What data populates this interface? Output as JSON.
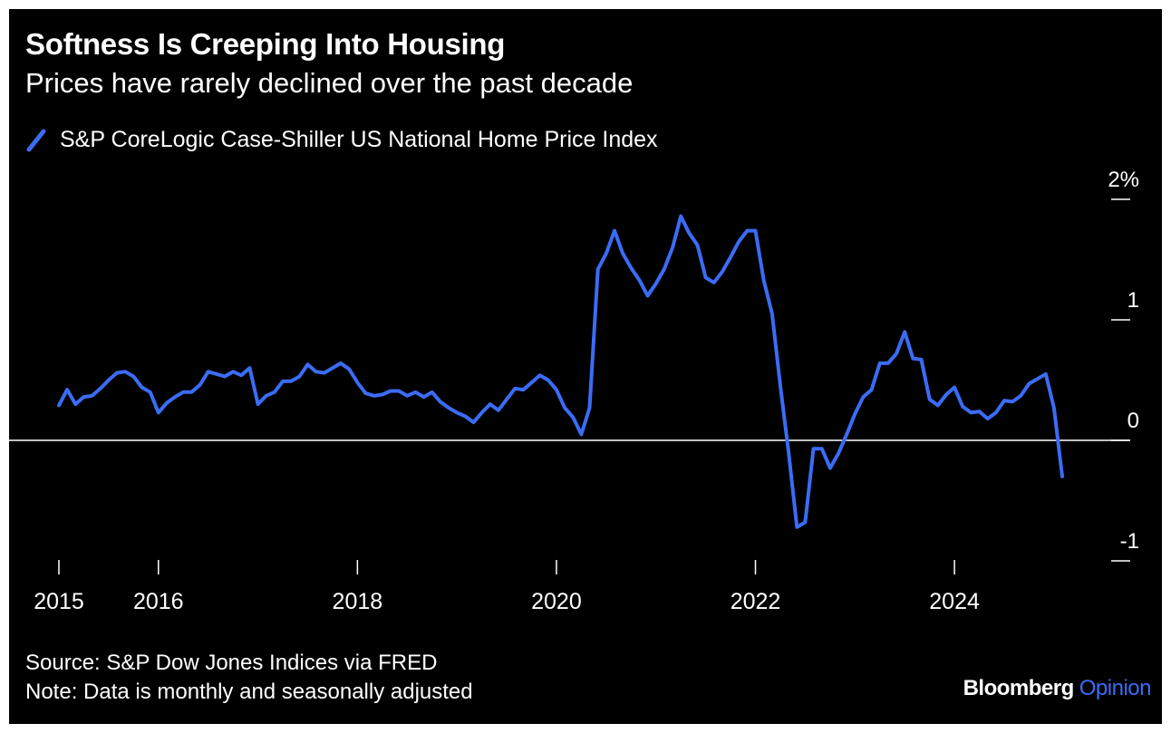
{
  "title": "Softness Is Creeping Into Housing",
  "subtitle": "Prices have rarely declined over the past decade",
  "legend_label": "S&P CoreLogic Case-Shiller US National Home Price Index",
  "source": "Source: S&P Dow Jones Indices via FRED",
  "note": "Note: Data is monthly and seasonally adjusted",
  "brand": {
    "name": "Bloomberg",
    "suffix": "Opinion"
  },
  "colors": {
    "background": "#000000",
    "line": "#3b6cf6",
    "text": "#ffffff",
    "zero_line": "#ffffff",
    "brand_accent": "#3b6cf6"
  },
  "chart_data": {
    "type": "line",
    "x_axis": {
      "ticks": [
        2015,
        2016,
        2018,
        2020,
        2022,
        2024
      ],
      "labels": [
        "2015",
        "2016",
        "2018",
        "2020",
        "2022",
        "2024"
      ]
    },
    "y_axis": {
      "ticks": [
        2,
        1,
        0,
        -1
      ],
      "labels": [
        "2%",
        "1",
        "0",
        "-1"
      ],
      "position": "right"
    },
    "ylim": [
      -1,
      2
    ],
    "grid": false,
    "zero_line": true,
    "legend": "top-left",
    "series": [
      {
        "name": "S&P CoreLogic Case-Shiller US National Home Price Index",
        "x": [
          2015.0,
          2015.083,
          2015.167,
          2015.25,
          2015.333,
          2015.417,
          2015.5,
          2015.583,
          2015.667,
          2015.75,
          2015.833,
          2015.917,
          2016.0,
          2016.083,
          2016.167,
          2016.25,
          2016.333,
          2016.417,
          2016.5,
          2016.583,
          2016.667,
          2016.75,
          2016.833,
          2016.917,
          2017.0,
          2017.083,
          2017.167,
          2017.25,
          2017.333,
          2017.417,
          2017.5,
          2017.583,
          2017.667,
          2017.75,
          2017.833,
          2017.917,
          2018.0,
          2018.083,
          2018.167,
          2018.25,
          2018.333,
          2018.417,
          2018.5,
          2018.583,
          2018.667,
          2018.75,
          2018.833,
          2018.917,
          2019.0,
          2019.083,
          2019.167,
          2019.25,
          2019.333,
          2019.417,
          2019.5,
          2019.583,
          2019.667,
          2019.75,
          2019.833,
          2019.917,
          2020.0,
          2020.083,
          2020.167,
          2020.25,
          2020.333,
          2020.417,
          2020.5,
          2020.583,
          2020.667,
          2020.75,
          2020.833,
          2020.917,
          2021.0,
          2021.083,
          2021.167,
          2021.25,
          2021.333,
          2021.417,
          2021.5,
          2021.583,
          2021.667,
          2021.75,
          2021.833,
          2021.917,
          2022.0,
          2022.083,
          2022.167,
          2022.25,
          2022.333,
          2022.417,
          2022.5,
          2022.583,
          2022.667,
          2022.75,
          2022.833,
          2022.917,
          2023.0,
          2023.083,
          2023.167,
          2023.25,
          2023.333,
          2023.417,
          2023.5,
          2023.583,
          2023.667,
          2023.75,
          2023.833,
          2023.917,
          2024.0,
          2024.083,
          2024.167,
          2024.25,
          2024.333,
          2024.417,
          2024.5,
          2024.583,
          2024.667,
          2024.75,
          2024.833,
          2024.917,
          2025.0,
          2025.083
        ],
        "values": [
          0.29,
          0.42,
          0.3,
          0.36,
          0.37,
          0.43,
          0.5,
          0.56,
          0.57,
          0.53,
          0.44,
          0.4,
          0.23,
          0.31,
          0.36,
          0.4,
          0.4,
          0.46,
          0.57,
          0.55,
          0.53,
          0.57,
          0.54,
          0.6,
          0.3,
          0.37,
          0.4,
          0.49,
          0.49,
          0.53,
          0.63,
          0.57,
          0.56,
          0.6,
          0.64,
          0.59,
          0.48,
          0.39,
          0.37,
          0.38,
          0.41,
          0.41,
          0.37,
          0.4,
          0.36,
          0.4,
          0.32,
          0.27,
          0.23,
          0.2,
          0.15,
          0.23,
          0.3,
          0.25,
          0.34,
          0.43,
          0.42,
          0.48,
          0.54,
          0.5,
          0.42,
          0.27,
          0.19,
          0.05,
          0.27,
          1.42,
          1.55,
          1.74,
          1.55,
          1.43,
          1.33,
          1.2,
          1.3,
          1.42,
          1.6,
          1.86,
          1.72,
          1.62,
          1.35,
          1.31,
          1.4,
          1.52,
          1.65,
          1.74,
          1.74,
          1.33,
          1.05,
          0.45,
          -0.1,
          -0.72,
          -0.68,
          -0.07,
          -0.07,
          -0.23,
          -0.11,
          0.05,
          0.22,
          0.36,
          0.42,
          0.64,
          0.64,
          0.72,
          0.9,
          0.68,
          0.67,
          0.34,
          0.29,
          0.38,
          0.44,
          0.28,
          0.23,
          0.24,
          0.18,
          0.23,
          0.33,
          0.32,
          0.37,
          0.47,
          0.51,
          0.55,
          0.27,
          -0.3
        ]
      }
    ]
  }
}
